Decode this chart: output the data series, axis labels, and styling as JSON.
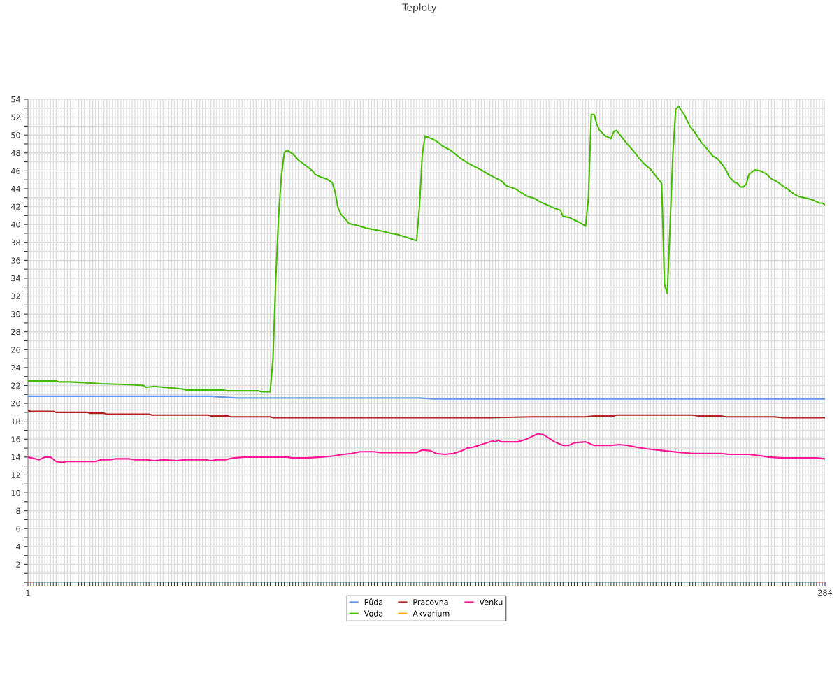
{
  "chart_data": {
    "type": "line",
    "title": "Teploty",
    "xlim": [
      1,
      284
    ],
    "ylim": [
      0,
      54
    ],
    "xticks": [
      1,
      {
        "value": 2,
        "label": null
      },
      {
        "value": 3,
        "label": null
      },
      {
        "value": 4,
        "label": null
      },
      {
        "value": 5,
        "label": null
      },
      {
        "value": 6,
        "label": null
      },
      {
        "value": 7,
        "label": null
      },
      {
        "value": 8,
        "label": null
      },
      {
        "value": 9,
        "label": null
      },
      {
        "value": 10,
        "label": null
      },
      {
        "value": 11,
        "label": null
      },
      {
        "value": 12,
        "label": null
      },
      {
        "value": 13,
        "label": null
      },
      {
        "value": 14,
        "label": null
      },
      {
        "value": 15,
        "label": null
      },
      {
        "value": 16,
        "label": null
      },
      {
        "value": 17,
        "label": null
      },
      {
        "value": 18,
        "label": null
      },
      {
        "value": 19,
        "label": null
      },
      {
        "value": 20,
        "label": null
      },
      {
        "value": 21,
        "label": null
      },
      {
        "value": 22,
        "label": null
      },
      {
        "value": 23,
        "label": null
      },
      {
        "value": 24,
        "label": null
      },
      {
        "value": 25,
        "label": null
      },
      {
        "value": 26,
        "label": null
      },
      {
        "value": 27,
        "label": null
      },
      {
        "value": 28,
        "label": null
      },
      {
        "value": 29,
        "label": null
      },
      {
        "value": 30,
        "label": null
      },
      {
        "value": 31,
        "label": null
      },
      {
        "value": 32,
        "label": null
      },
      {
        "value": 33,
        "label": null
      },
      {
        "value": 34,
        "label": null
      },
      {
        "value": 35,
        "label": null
      },
      {
        "value": 36,
        "label": null
      },
      {
        "value": 37,
        "label": null
      },
      {
        "value": 38,
        "label": null
      },
      {
        "value": 39,
        "label": null
      },
      {
        "value": 40,
        "label": null
      },
      {
        "value": 41,
        "label": null
      },
      {
        "value": 42,
        "label": null
      },
      {
        "value": 43,
        "label": null
      },
      {
        "value": 44,
        "label": null
      },
      {
        "value": 45,
        "label": null
      },
      {
        "value": 46,
        "label": null
      },
      {
        "value": 47,
        "label": null
      },
      {
        "value": 48,
        "label": null
      },
      {
        "value": 49,
        "label": null
      },
      {
        "value": 50,
        "label": null
      },
      {
        "value": 51,
        "label": null
      },
      {
        "value": 52,
        "label": null
      },
      {
        "value": 53,
        "label": null
      },
      {
        "value": 54,
        "label": null
      },
      {
        "value": 55,
        "label": null
      },
      {
        "value": 56,
        "label": null
      },
      {
        "value": 57,
        "label": null
      },
      {
        "value": 58,
        "label": null
      },
      {
        "value": 59,
        "label": null
      },
      {
        "value": 60,
        "label": null
      },
      {
        "value": 61,
        "label": null
      },
      {
        "value": 62,
        "label": null
      },
      {
        "value": 63,
        "label": null
      },
      {
        "value": 64,
        "label": null
      },
      {
        "value": 65,
        "label": null
      },
      {
        "value": 66,
        "label": null
      },
      {
        "value": 67,
        "label": null
      },
      {
        "value": 68,
        "label": null
      },
      {
        "value": 69,
        "label": null
      },
      {
        "value": 70,
        "label": null
      },
      {
        "value": 71,
        "label": null
      },
      {
        "value": 72,
        "label": null
      },
      {
        "value": 73,
        "label": null
      },
      {
        "value": 74,
        "label": null
      },
      {
        "value": 75,
        "label": null
      },
      {
        "value": 76,
        "label": null
      },
      {
        "value": 77,
        "label": null
      },
      {
        "value": 78,
        "label": null
      },
      {
        "value": 79,
        "label": null
      },
      {
        "value": 80,
        "label": null
      },
      {
        "value": 81,
        "label": null
      },
      {
        "value": 82,
        "label": null
      },
      {
        "value": 83,
        "label": null
      },
      {
        "value": 84,
        "label": null
      },
      {
        "value": 85,
        "label": null
      },
      {
        "value": 86,
        "label": null
      },
      {
        "value": 87,
        "label": null
      },
      {
        "value": 88,
        "label": null
      },
      {
        "value": 89,
        "label": null
      },
      {
        "value": 90,
        "label": null
      },
      {
        "value": 91,
        "label": null
      },
      {
        "value": 92,
        "label": null
      },
      {
        "value": 93,
        "label": null
      },
      {
        "value": 94,
        "label": null
      },
      {
        "value": 95,
        "label": null
      },
      {
        "value": 96,
        "label": null
      },
      {
        "value": 97,
        "label": null
      },
      {
        "value": 98,
        "label": null
      },
      {
        "value": 99,
        "label": null
      },
      {
        "value": 100,
        "label": null
      },
      {
        "value": 101,
        "label": null
      },
      {
        "value": 102,
        "label": null
      },
      {
        "value": 103,
        "label": null
      },
      {
        "value": 104,
        "label": null
      },
      {
        "value": 105,
        "label": null
      },
      {
        "value": 106,
        "label": null
      },
      {
        "value": 107,
        "label": null
      },
      {
        "value": 108,
        "label": null
      },
      {
        "value": 109,
        "label": null
      },
      {
        "value": 110,
        "label": null
      },
      {
        "value": 111,
        "label": null
      },
      {
        "value": 112,
        "label": null
      },
      {
        "value": 113,
        "label": null
      },
      {
        "value": 114,
        "label": null
      },
      {
        "value": 115,
        "label": null
      },
      {
        "value": 116,
        "label": null
      },
      {
        "value": 117,
        "label": null
      },
      {
        "value": 118,
        "label": null
      },
      {
        "value": 119,
        "label": null
      },
      {
        "value": 120,
        "label": null
      },
      {
        "value": 121,
        "label": null
      },
      {
        "value": 122,
        "label": null
      },
      {
        "value": 123,
        "label": null
      },
      {
        "value": 124,
        "label": null
      },
      {
        "value": 125,
        "label": null
      },
      {
        "value": 126,
        "label": null
      },
      {
        "value": 127,
        "label": null
      },
      {
        "value": 128,
        "label": null
      },
      {
        "value": 129,
        "label": null
      },
      {
        "value": 130,
        "label": null
      },
      {
        "value": 131,
        "label": null
      },
      {
        "value": 132,
        "label": null
      },
      {
        "value": 133,
        "label": null
      },
      {
        "value": 134,
        "label": null
      },
      {
        "value": 135,
        "label": null
      },
      {
        "value": 136,
        "label": null
      },
      {
        "value": 137,
        "label": null
      },
      {
        "value": 138,
        "label": null
      },
      {
        "value": 139,
        "label": null
      },
      {
        "value": 140,
        "label": null
      },
      {
        "value": 141,
        "label": null
      },
      {
        "value": 142,
        "label": null
      },
      {
        "value": 143,
        "label": null
      },
      {
        "value": 144,
        "label": null
      },
      {
        "value": 145,
        "label": null
      },
      {
        "value": 146,
        "label": null
      },
      {
        "value": 147,
        "label": null
      },
      {
        "value": 148,
        "label": null
      },
      {
        "value": 149,
        "label": null
      },
      {
        "value": 150,
        "label": null
      },
      {
        "value": 151,
        "label": null
      },
      {
        "value": 152,
        "label": null
      },
      {
        "value": 153,
        "label": null
      },
      {
        "value": 154,
        "label": null
      },
      {
        "value": 155,
        "label": null
      },
      {
        "value": 156,
        "label": null
      },
      {
        "value": 157,
        "label": null
      },
      {
        "value": 158,
        "label": null
      },
      {
        "value": 159,
        "label": null
      },
      {
        "value": 160,
        "label": null
      },
      {
        "value": 161,
        "label": null
      },
      {
        "value": 162,
        "label": null
      },
      {
        "value": 163,
        "label": null
      },
      {
        "value": 164,
        "label": null
      },
      {
        "value": 165,
        "label": null
      },
      {
        "value": 166,
        "label": null
      },
      {
        "value": 167,
        "label": null
      },
      {
        "value": 168,
        "label": null
      },
      {
        "value": 169,
        "label": null
      },
      {
        "value": 170,
        "label": null
      },
      {
        "value": 171,
        "label": null
      },
      {
        "value": 172,
        "label": null
      },
      {
        "value": 173,
        "label": null
      },
      {
        "value": 174,
        "label": null
      },
      {
        "value": 175,
        "label": null
      },
      {
        "value": 176,
        "label": null
      },
      {
        "value": 177,
        "label": null
      },
      {
        "value": 178,
        "label": null
      },
      {
        "value": 179,
        "label": null
      },
      {
        "value": 180,
        "label": null
      },
      {
        "value": 181,
        "label": null
      },
      {
        "value": 182,
        "label": null
      },
      {
        "value": 183,
        "label": null
      },
      {
        "value": 184,
        "label": null
      },
      {
        "value": 185,
        "label": null
      },
      {
        "value": 186,
        "label": null
      },
      {
        "value": 187,
        "label": null
      },
      {
        "value": 188,
        "label": null
      },
      {
        "value": 189,
        "label": null
      },
      {
        "value": 190,
        "label": null
      },
      {
        "value": 191,
        "label": null
      },
      {
        "value": 192,
        "label": null
      },
      {
        "value": 193,
        "label": null
      },
      {
        "value": 194,
        "label": null
      },
      {
        "value": 195,
        "label": null
      },
      {
        "value": 196,
        "label": null
      },
      {
        "value": 197,
        "label": null
      },
      {
        "value": 198,
        "label": null
      },
      {
        "value": 199,
        "label": null
      },
      {
        "value": 200,
        "label": null
      },
      {
        "value": 201,
        "label": null
      },
      {
        "value": 202,
        "label": null
      },
      {
        "value": 203,
        "label": null
      },
      {
        "value": 204,
        "label": null
      },
      {
        "value": 205,
        "label": null
      },
      {
        "value": 206,
        "label": null
      },
      {
        "value": 207,
        "label": null
      },
      {
        "value": 208,
        "label": null
      },
      {
        "value": 209,
        "label": null
      },
      {
        "value": 210,
        "label": null
      },
      {
        "value": 211,
        "label": null
      },
      {
        "value": 212,
        "label": null
      },
      {
        "value": 213,
        "label": null
      },
      {
        "value": 214,
        "label": null
      },
      {
        "value": 215,
        "label": null
      },
      {
        "value": 216,
        "label": null
      },
      {
        "value": 217,
        "label": null
      },
      {
        "value": 218,
        "label": null
      },
      {
        "value": 219,
        "label": null
      },
      {
        "value": 220,
        "label": null
      },
      {
        "value": 221,
        "label": null
      },
      {
        "value": 222,
        "label": null
      },
      {
        "value": 223,
        "label": null
      },
      {
        "value": 224,
        "label": null
      },
      {
        "value": 225,
        "label": null
      },
      {
        "value": 226,
        "label": null
      },
      {
        "value": 227,
        "label": null
      },
      {
        "value": 228,
        "label": null
      },
      {
        "value": 229,
        "label": null
      },
      {
        "value": 230,
        "label": null
      },
      {
        "value": 231,
        "label": null
      },
      {
        "value": 232,
        "label": null
      },
      {
        "value": 233,
        "label": null
      },
      {
        "value": 234,
        "label": null
      },
      {
        "value": 235,
        "label": null
      },
      {
        "value": 236,
        "label": null
      },
      {
        "value": 237,
        "label": null
      },
      {
        "value": 238,
        "label": null
      },
      {
        "value": 239,
        "label": null
      },
      {
        "value": 240,
        "label": null
      },
      {
        "value": 241,
        "label": null
      },
      {
        "value": 242,
        "label": null
      },
      {
        "value": 243,
        "label": null
      },
      {
        "value": 244,
        "label": null
      },
      {
        "value": 245,
        "label": null
      },
      {
        "value": 246,
        "label": null
      },
      {
        "value": 247,
        "label": null
      },
      {
        "value": 248,
        "label": null
      },
      {
        "value": 249,
        "label": null
      },
      {
        "value": 250,
        "label": null
      },
      {
        "value": 251,
        "label": null
      },
      {
        "value": 252,
        "label": null
      },
      {
        "value": 253,
        "label": null
      },
      {
        "value": 254,
        "label": null
      },
      {
        "value": 255,
        "label": null
      },
      {
        "value": 256,
        "label": null
      },
      {
        "value": 257,
        "label": null
      },
      {
        "value": 258,
        "label": null
      },
      {
        "value": 259,
        "label": null
      },
      {
        "value": 260,
        "label": null
      },
      {
        "value": 261,
        "label": null
      },
      {
        "value": 262,
        "label": null
      },
      {
        "value": 263,
        "label": null
      },
      {
        "value": 264,
        "label": null
      },
      {
        "value": 265,
        "label": null
      },
      {
        "value": 266,
        "label": null
      },
      {
        "value": 267,
        "label": null
      },
      {
        "value": 268,
        "label": null
      },
      {
        "value": 269,
        "label": null
      },
      {
        "value": 270,
        "label": null
      },
      {
        "value": 271,
        "label": null
      },
      {
        "value": 272,
        "label": null
      },
      {
        "value": 273,
        "label": null
      },
      {
        "value": 274,
        "label": null
      },
      {
        "value": 275,
        "label": null
      },
      {
        "value": 276,
        "label": null
      },
      {
        "value": 277,
        "label": null
      },
      {
        "value": 278,
        "label": null
      },
      {
        "value": 279,
        "label": null
      },
      {
        "value": 280,
        "label": null
      },
      {
        "value": 281,
        "label": null
      },
      {
        "value": 282,
        "label": null
      },
      {
        "value": 283,
        "label": null
      },
      284
    ],
    "yticks": [
      {
        "value": 0,
        "label": null
      },
      {
        "value": 1,
        "label": null
      },
      2,
      {
        "value": 3,
        "label": null
      },
      4,
      {
        "value": 5,
        "label": null
      },
      6,
      {
        "value": 7,
        "label": null
      },
      8,
      {
        "value": 9,
        "label": null
      },
      10,
      {
        "value": 11,
        "label": null
      },
      12,
      {
        "value": 13,
        "label": null
      },
      14,
      {
        "value": 15,
        "label": null
      },
      16,
      {
        "value": 17,
        "label": null
      },
      18,
      {
        "value": 19,
        "label": null
      },
      20,
      {
        "value": 21,
        "label": null
      },
      22,
      {
        "value": 23,
        "label": null
      },
      24,
      {
        "value": 25,
        "label": null
      },
      26,
      {
        "value": 27,
        "label": null
      },
      28,
      {
        "value": 29,
        "label": null
      },
      30,
      {
        "value": 31,
        "label": null
      },
      32,
      {
        "value": 33,
        "label": null
      },
      34,
      {
        "value": 35,
        "label": null
      },
      36,
      {
        "value": 37,
        "label": null
      },
      38,
      {
        "value": 39,
        "label": null
      },
      40,
      {
        "value": 41,
        "label": null
      },
      42,
      {
        "value": 43,
        "label": null
      },
      44,
      {
        "value": 45,
        "label": null
      },
      46,
      {
        "value": 47,
        "label": null
      },
      48,
      {
        "value": 49,
        "label": null
      },
      50,
      {
        "value": 51,
        "label": null
      },
      52,
      {
        "value": 53,
        "label": null
      },
      54
    ],
    "grid": true,
    "legend": "bottom",
    "marker": "none",
    "line_style": "solid",
    "series": [
      {
        "name": "Půda",
        "color": "#6495ed",
        "x": [
          1,
          66,
          70,
          75,
          140,
          145,
          284
        ],
        "values": [
          20.8,
          20.8,
          20.7,
          20.6,
          20.6,
          20.5,
          20.5
        ]
      },
      {
        "name": "Voda",
        "color": "#44bb00",
        "x": [
          1,
          11,
          12,
          16,
          22,
          27,
          37,
          42,
          43,
          46,
          49,
          53,
          56,
          57,
          70,
          72,
          83,
          84,
          87,
          88,
          89,
          90,
          91,
          92,
          93,
          95,
          97,
          100,
          102,
          103,
          105,
          107,
          109,
          110,
          111,
          112,
          114,
          115,
          118,
          121,
          126,
          130,
          132,
          135,
          138,
          139,
          140,
          141,
          142,
          145,
          147,
          148,
          151,
          153,
          155,
          157,
          160,
          162,
          164,
          167,
          169,
          171,
          174,
          176,
          178,
          181,
          183,
          186,
          188,
          190,
          191,
          193,
          195,
          197,
          199,
          200,
          201,
          202,
          203,
          204,
          206,
          208,
          209,
          210,
          211,
          213,
          216,
          218,
          220,
          222,
          224,
          226,
          227,
          228,
          229,
          230,
          231,
          232,
          234,
          236,
          238,
          240,
          242,
          244,
          246,
          248,
          249,
          250,
          252,
          253,
          254,
          255,
          256,
          257,
          259,
          261,
          263,
          264,
          265,
          267,
          269,
          271,
          273,
          275,
          278,
          280,
          282,
          283,
          284
        ],
        "values": [
          22.5,
          22.5,
          22.4,
          22.4,
          22.3,
          22.2,
          22.1,
          22.0,
          21.8,
          21.9,
          21.8,
          21.7,
          21.6,
          21.5,
          21.5,
          21.4,
          21.4,
          21.3,
          21.3,
          25,
          34,
          41,
          45.5,
          48,
          48.3,
          47.9,
          47.2,
          46.5,
          46,
          45.6,
          45.3,
          45.1,
          44.7,
          43.7,
          42,
          41.2,
          40.5,
          40.1,
          39.9,
          39.6,
          39.3,
          39.0,
          38.9,
          38.6,
          38.3,
          38.2,
          42,
          47.8,
          49.9,
          49.5,
          49.1,
          48.8,
          48.3,
          47.8,
          47.3,
          46.9,
          46.4,
          46.1,
          45.7,
          45.2,
          44.9,
          44.3,
          44.0,
          43.6,
          43.2,
          42.9,
          42.5,
          42.1,
          41.8,
          41.6,
          40.9,
          40.8,
          40.5,
          40.2,
          39.8,
          43,
          52.3,
          52.3,
          51.2,
          50.5,
          49.9,
          49.6,
          50.4,
          50.5,
          50.1,
          49.3,
          48.2,
          47.4,
          46.7,
          46.2,
          45.4,
          44.6,
          33.3,
          32.3,
          40,
          48,
          52.9,
          53.2,
          52.3,
          51,
          50.2,
          49.2,
          48.5,
          47.7,
          47.3,
          46.5,
          46,
          45.3,
          44.7,
          44.6,
          44.2,
          44.2,
          44.5,
          45.6,
          46.1,
          46.0,
          45.7,
          45.4,
          45.1,
          44.8,
          44.3,
          43.9,
          43.4,
          43.1,
          42.9,
          42.7,
          42.4,
          42.4,
          42.2
        ]
      },
      {
        "name": "Pracovna",
        "color": "#b22222",
        "x": [
          1,
          2,
          10,
          11,
          22,
          23,
          28,
          29,
          44,
          45,
          65,
          66,
          72,
          73,
          87,
          88,
          165,
          180,
          199,
          202,
          209,
          210,
          237,
          239,
          247,
          249,
          266,
          269,
          284
        ],
        "values": [
          19.2,
          19.1,
          19.1,
          19.0,
          19.0,
          18.9,
          18.9,
          18.8,
          18.8,
          18.7,
          18.7,
          18.6,
          18.6,
          18.5,
          18.5,
          18.4,
          18.4,
          18.5,
          18.5,
          18.6,
          18.6,
          18.7,
          18.7,
          18.6,
          18.6,
          18.5,
          18.5,
          18.4,
          18.4
        ]
      },
      {
        "name": "Akvarium",
        "color": "#ffa500",
        "x": [
          1,
          284
        ],
        "values": [
          0,
          0
        ]
      },
      {
        "name": "Venku",
        "color": "#ff1493",
        "x": [
          1,
          5,
          7,
          9,
          11,
          13,
          15,
          25,
          27,
          30,
          32,
          37,
          39,
          43,
          46,
          49,
          54,
          57,
          64,
          66,
          68,
          71,
          74,
          78,
          93,
          95,
          100,
          105,
          109,
          113,
          116,
          119,
          124,
          126,
          139,
          141,
          144,
          146,
          149,
          152,
          155,
          157,
          159,
          161,
          164,
          166,
          167,
          168,
          169,
          175,
          177,
          178,
          180,
          182,
          184,
          186,
          188,
          191,
          193,
          195,
          199,
          202,
          205,
          208,
          211,
          214,
          217,
          221,
          227,
          233,
          237,
          247,
          250,
          257,
          262,
          264,
          269,
          276,
          281,
          284
        ],
        "values": [
          14.0,
          13.7,
          14.0,
          14.0,
          13.5,
          13.4,
          13.5,
          13.5,
          13.7,
          13.7,
          13.8,
          13.8,
          13.7,
          13.7,
          13.6,
          13.7,
          13.6,
          13.7,
          13.7,
          13.6,
          13.7,
          13.7,
          13.9,
          14.0,
          14.0,
          13.9,
          13.9,
          14.0,
          14.1,
          14.3,
          14.4,
          14.6,
          14.6,
          14.5,
          14.5,
          14.8,
          14.7,
          14.4,
          14.3,
          14.4,
          14.7,
          15.0,
          15.1,
          15.3,
          15.6,
          15.8,
          15.7,
          15.9,
          15.7,
          15.7,
          15.9,
          16.0,
          16.3,
          16.6,
          16.5,
          16.1,
          15.7,
          15.3,
          15.3,
          15.6,
          15.7,
          15.3,
          15.3,
          15.3,
          15.4,
          15.3,
          15.1,
          14.9,
          14.7,
          14.5,
          14.4,
          14.4,
          14.3,
          14.3,
          14.1,
          14.0,
          13.9,
          13.9,
          13.9,
          13.8
        ]
      }
    ]
  }
}
